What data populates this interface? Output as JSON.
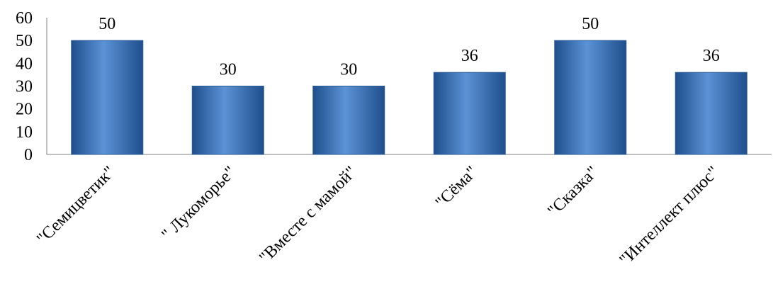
{
  "chart_data": {
    "type": "bar",
    "categories": [
      "\"Семицветик\"",
      "\" Лукоморье\"",
      "\"Вместе с мамой\"",
      "\"Сёма\"",
      "\"Сказка\"",
      "\"Интеллект плюс\""
    ],
    "values": [
      50,
      30,
      30,
      36,
      50,
      36
    ],
    "data_labels": [
      "50",
      "30",
      "30",
      "36",
      "50",
      "36"
    ],
    "y_ticks": [
      "0",
      "10",
      "20",
      "30",
      "40",
      "50",
      "60"
    ],
    "ylim": [
      0,
      60
    ],
    "grid": false,
    "legend": "none",
    "bar_color": "#4a7ebb",
    "bar_color_light": "#5b93d6",
    "bar_color_dark": "#1f4e8c"
  }
}
